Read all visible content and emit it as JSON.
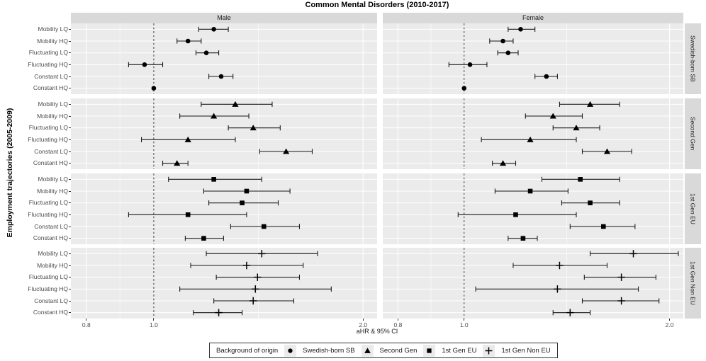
{
  "colors": {
    "panel_bg": "#ebebeb",
    "strip_bg": "#d9d9d9",
    "grid": "#ffffff",
    "marker": "#000000",
    "error_bar": "#1a1a1a",
    "ref_line": "#404040",
    "tick_text": "#4d4d4d",
    "strip_text": "#1a1a1a",
    "legend_border": "#333333",
    "legend_key_bg": "#ebebeb"
  },
  "legend": {
    "title": "Background of origin",
    "items": [
      {
        "label": "Swedish-born SB",
        "marker": "circle"
      },
      {
        "label": "Second Gen",
        "marker": "triangle"
      },
      {
        "label": "1st Gen EU",
        "marker": "square"
      },
      {
        "label": "1st Gen Non EU",
        "marker": "plus"
      }
    ]
  },
  "chart_data": {
    "type": "scatter",
    "subtype": "forest-plot-with-95ci",
    "title": "Common Mental Disorders (2010-2017)",
    "xlabel": "aHR & 95% CI",
    "ylabel": "Employment trajectories (2005-2009)",
    "x_scale": "log10",
    "xlim": [
      0.76,
      2.095
    ],
    "x_ticks": [
      0.8,
      1.0,
      2.0
    ],
    "x_tick_labels": [
      "0.8",
      "1.0",
      "2.0"
    ],
    "x_minor_gridlines": [
      0.894,
      1.414
    ],
    "reference_line_x": 1.0,
    "grid": true,
    "legend_position": "bottom",
    "col_facets": [
      "Male",
      "Female"
    ],
    "categories": [
      "Mobility LQ",
      "Mobility HQ",
      "Fluctuating LQ",
      "Fluctuating HQ",
      "Constant LQ",
      "Constant HQ"
    ],
    "series": [
      {
        "group": "Swedish-born SB",
        "marker": "circle",
        "male": [
          [
            1.22,
            1.16,
            1.28
          ],
          [
            1.12,
            1.08,
            1.17
          ],
          [
            1.19,
            1.15,
            1.24
          ],
          [
            0.97,
            0.92,
            1.03
          ],
          [
            1.25,
            1.2,
            1.3
          ],
          [
            1.0,
            null,
            null
          ]
        ],
        "female": [
          [
            1.21,
            1.16,
            1.27
          ],
          [
            1.14,
            1.09,
            1.18
          ],
          [
            1.16,
            1.12,
            1.2
          ],
          [
            1.02,
            0.95,
            1.08
          ],
          [
            1.32,
            1.27,
            1.37
          ],
          [
            1.0,
            null,
            null
          ]
        ]
      },
      {
        "group": "Second Gen",
        "marker": "triangle",
        "male": [
          [
            1.31,
            1.17,
            1.48
          ],
          [
            1.22,
            1.09,
            1.37
          ],
          [
            1.39,
            1.28,
            1.52
          ],
          [
            1.12,
            0.96,
            1.31
          ],
          [
            1.55,
            1.42,
            1.69
          ],
          [
            1.08,
            1.03,
            1.12
          ]
        ],
        "female": [
          [
            1.53,
            1.38,
            1.69
          ],
          [
            1.35,
            1.23,
            1.49
          ],
          [
            1.46,
            1.35,
            1.58
          ],
          [
            1.25,
            1.06,
            1.46
          ],
          [
            1.62,
            1.49,
            1.76
          ],
          [
            1.14,
            1.1,
            1.19
          ]
        ]
      },
      {
        "group": "1st Gen EU",
        "marker": "square",
        "male": [
          [
            1.22,
            1.05,
            1.43
          ],
          [
            1.36,
            1.18,
            1.57
          ],
          [
            1.34,
            1.2,
            1.51
          ],
          [
            1.12,
            0.92,
            1.36
          ],
          [
            1.44,
            1.29,
            1.62
          ],
          [
            1.18,
            1.11,
            1.26
          ]
        ],
        "female": [
          [
            1.48,
            1.3,
            1.69
          ],
          [
            1.25,
            1.11,
            1.42
          ],
          [
            1.53,
            1.39,
            1.69
          ],
          [
            1.19,
            0.98,
            1.46
          ],
          [
            1.6,
            1.43,
            1.78
          ],
          [
            1.22,
            1.16,
            1.28
          ]
        ]
      },
      {
        "group": "1st Gen Non EU",
        "marker": "plus",
        "male": [
          [
            1.43,
            1.19,
            1.72
          ],
          [
            1.36,
            1.13,
            1.64
          ],
          [
            1.41,
            1.23,
            1.62
          ],
          [
            1.4,
            1.09,
            1.8
          ],
          [
            1.39,
            1.22,
            1.59
          ],
          [
            1.24,
            1.14,
            1.34
          ]
        ],
        "female": [
          [
            1.77,
            1.53,
            2.06
          ],
          [
            1.38,
            1.18,
            1.62
          ],
          [
            1.7,
            1.5,
            1.91
          ],
          [
            1.37,
            1.04,
            1.8
          ],
          [
            1.7,
            1.49,
            1.93
          ],
          [
            1.43,
            1.35,
            1.53
          ]
        ]
      }
    ]
  }
}
